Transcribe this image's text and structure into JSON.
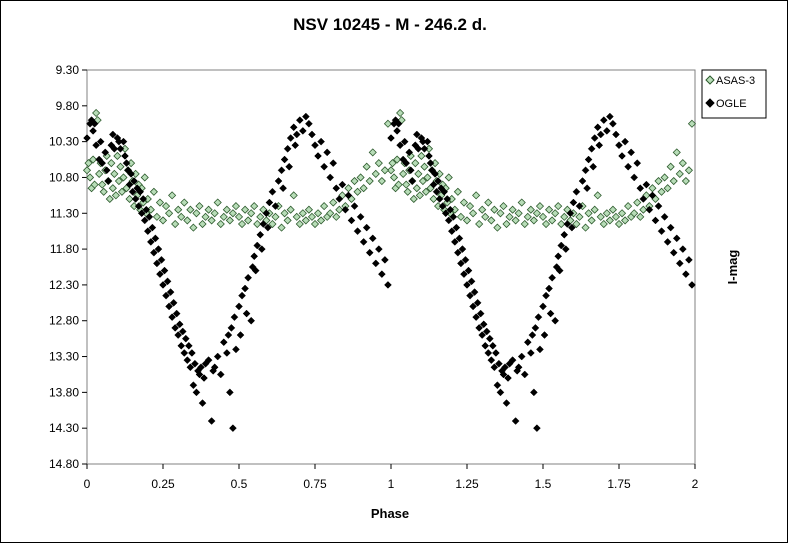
{
  "chart_data": {
    "type": "scatter",
    "title": "NSV 10245 - M - 246.2 d.",
    "xlabel": "Phase",
    "ylabel": "I-mag",
    "xlim": [
      0,
      2
    ],
    "ylim": [
      14.8,
      9.3
    ],
    "y_inverted": true,
    "x_ticks": [
      "0",
      "0.25",
      "0.5",
      "0.75",
      "1",
      "1.25",
      "1.5",
      "1.75",
      "2"
    ],
    "y_ticks": [
      "9.30",
      "9.80",
      "10.30",
      "10.80",
      "11.30",
      "11.80",
      "12.30",
      "12.80",
      "13.30",
      "13.80",
      "14.30",
      "14.80"
    ],
    "grid": false,
    "legend_position": "top-right",
    "series": [
      {
        "name": "ASAS-3",
        "marker": "diamond-open",
        "color": "#b7dcb7",
        "points": [
          [
            0.0,
            10.7
          ],
          [
            0.005,
            10.6
          ],
          [
            0.01,
            10.8
          ],
          [
            0.015,
            10.95
          ],
          [
            0.02,
            10.55
          ],
          [
            0.025,
            10.9
          ],
          [
            0.03,
            9.9
          ],
          [
            0.035,
            10.0
          ],
          [
            0.04,
            10.75
          ],
          [
            0.045,
            10.6
          ],
          [
            0.05,
            10.9
          ],
          [
            0.055,
            11.0
          ],
          [
            0.06,
            10.7
          ],
          [
            0.065,
            10.5
          ],
          [
            0.07,
            10.85
          ],
          [
            0.075,
            11.1
          ],
          [
            0.08,
            10.6
          ],
          [
            0.085,
            10.95
          ],
          [
            0.09,
            10.75
          ],
          [
            0.095,
            11.05
          ],
          [
            0.1,
            10.5
          ],
          [
            0.105,
            10.85
          ],
          [
            0.11,
            10.65
          ],
          [
            0.115,
            11.0
          ],
          [
            0.12,
            10.8
          ],
          [
            0.125,
            10.4
          ],
          [
            0.13,
            10.95
          ],
          [
            0.135,
            10.7
          ],
          [
            0.14,
            11.1
          ],
          [
            0.145,
            10.6
          ],
          [
            0.15,
            10.85
          ],
          [
            0.155,
            11.2
          ],
          [
            0.16,
            10.75
          ],
          [
            0.165,
            11.05
          ],
          [
            0.17,
            10.9
          ],
          [
            0.175,
            11.25
          ],
          [
            0.18,
            10.95
          ],
          [
            0.185,
            11.15
          ],
          [
            0.19,
            10.8
          ],
          [
            0.195,
            11.3
          ],
          [
            0.2,
            11.1
          ],
          [
            0.21,
            11.25
          ],
          [
            0.22,
            11.0
          ],
          [
            0.23,
            11.35
          ],
          [
            0.24,
            11.15
          ],
          [
            0.25,
            11.4
          ],
          [
            0.26,
            11.2
          ],
          [
            0.27,
            11.3
          ],
          [
            0.28,
            11.05
          ],
          [
            0.29,
            11.45
          ],
          [
            0.3,
            11.25
          ],
          [
            0.31,
            11.35
          ],
          [
            0.32,
            11.15
          ],
          [
            0.33,
            11.4
          ],
          [
            0.34,
            11.25
          ],
          [
            0.35,
            11.5
          ],
          [
            0.36,
            11.3
          ],
          [
            0.37,
            11.2
          ],
          [
            0.38,
            11.45
          ],
          [
            0.39,
            11.35
          ],
          [
            0.4,
            11.25
          ],
          [
            0.41,
            11.4
          ],
          [
            0.42,
            11.3
          ],
          [
            0.43,
            11.15
          ],
          [
            0.44,
            11.45
          ],
          [
            0.45,
            11.35
          ],
          [
            0.46,
            11.25
          ],
          [
            0.47,
            11.4
          ],
          [
            0.48,
            11.3
          ],
          [
            0.49,
            11.2
          ],
          [
            0.5,
            11.35
          ],
          [
            0.51,
            11.45
          ],
          [
            0.52,
            11.25
          ],
          [
            0.53,
            11.4
          ],
          [
            0.54,
            11.3
          ],
          [
            0.55,
            11.2
          ],
          [
            0.56,
            11.45
          ],
          [
            0.57,
            11.35
          ],
          [
            0.58,
            11.25
          ],
          [
            0.59,
            11.4
          ],
          [
            0.6,
            11.3
          ],
          [
            0.61,
            11.45
          ],
          [
            0.62,
            11.35
          ],
          [
            0.63,
            11.2
          ],
          [
            0.64,
            11.5
          ],
          [
            0.65,
            11.3
          ],
          [
            0.66,
            11.4
          ],
          [
            0.67,
            11.25
          ],
          [
            0.68,
            11.05
          ],
          [
            0.69,
            11.35
          ],
          [
            0.7,
            11.45
          ],
          [
            0.71,
            11.3
          ],
          [
            0.72,
            11.4
          ],
          [
            0.73,
            11.25
          ],
          [
            0.74,
            11.35
          ],
          [
            0.75,
            11.45
          ],
          [
            0.76,
            11.3
          ],
          [
            0.77,
            11.4
          ],
          [
            0.78,
            11.2
          ],
          [
            0.79,
            11.35
          ],
          [
            0.8,
            11.3
          ],
          [
            0.81,
            11.15
          ],
          [
            0.82,
            11.35
          ],
          [
            0.83,
            11.25
          ],
          [
            0.84,
            11.05
          ],
          [
            0.85,
            11.2
          ],
          [
            0.86,
            10.95
          ],
          [
            0.87,
            11.1
          ],
          [
            0.88,
            10.85
          ],
          [
            0.89,
            11.0
          ],
          [
            0.9,
            10.8
          ],
          [
            0.91,
            10.95
          ],
          [
            0.92,
            10.65
          ],
          [
            0.93,
            10.85
          ],
          [
            0.94,
            10.45
          ],
          [
            0.95,
            10.75
          ],
          [
            0.96,
            10.6
          ],
          [
            0.97,
            10.85
          ],
          [
            0.98,
            10.7
          ],
          [
            0.99,
            10.05
          ]
        ]
      },
      {
        "name": "OGLE",
        "marker": "diamond-filled",
        "color": "#000000",
        "points": [
          [
            0.0,
            10.25
          ],
          [
            0.01,
            10.05
          ],
          [
            0.015,
            10.0
          ],
          [
            0.02,
            10.15
          ],
          [
            0.025,
            10.05
          ],
          [
            0.03,
            10.35
          ],
          [
            0.04,
            10.55
          ],
          [
            0.045,
            10.3
          ],
          [
            0.05,
            10.6
          ],
          [
            0.06,
            10.45
          ],
          [
            0.065,
            10.7
          ],
          [
            0.07,
            10.85
          ],
          [
            0.08,
            10.35
          ],
          [
            0.085,
            10.2
          ],
          [
            0.09,
            10.4
          ],
          [
            0.1,
            10.25
          ],
          [
            0.105,
            10.3
          ],
          [
            0.11,
            10.4
          ],
          [
            0.12,
            10.3
          ],
          [
            0.125,
            10.5
          ],
          [
            0.13,
            10.6
          ],
          [
            0.135,
            10.7
          ],
          [
            0.14,
            10.9
          ],
          [
            0.145,
            10.75
          ],
          [
            0.15,
            11.0
          ],
          [
            0.155,
            10.85
          ],
          [
            0.16,
            11.1
          ],
          [
            0.165,
            10.95
          ],
          [
            0.17,
            11.2
          ],
          [
            0.175,
            11.0
          ],
          [
            0.18,
            11.3
          ],
          [
            0.185,
            11.1
          ],
          [
            0.19,
            11.4
          ],
          [
            0.195,
            11.25
          ],
          [
            0.2,
            11.55
          ],
          [
            0.205,
            11.35
          ],
          [
            0.21,
            11.7
          ],
          [
            0.215,
            11.5
          ],
          [
            0.22,
            11.85
          ],
          [
            0.225,
            11.65
          ],
          [
            0.23,
            12.0
          ],
          [
            0.235,
            11.8
          ],
          [
            0.24,
            12.15
          ],
          [
            0.245,
            11.95
          ],
          [
            0.25,
            12.3
          ],
          [
            0.255,
            12.1
          ],
          [
            0.26,
            12.45
          ],
          [
            0.265,
            12.25
          ],
          [
            0.27,
            12.6
          ],
          [
            0.275,
            12.4
          ],
          [
            0.28,
            12.75
          ],
          [
            0.285,
            12.55
          ],
          [
            0.29,
            12.9
          ],
          [
            0.295,
            12.7
          ],
          [
            0.3,
            13.0
          ],
          [
            0.305,
            12.85
          ],
          [
            0.31,
            13.15
          ],
          [
            0.315,
            12.95
          ],
          [
            0.32,
            13.25
          ],
          [
            0.325,
            13.05
          ],
          [
            0.33,
            13.35
          ],
          [
            0.335,
            13.15
          ],
          [
            0.34,
            13.45
          ],
          [
            0.345,
            13.25
          ],
          [
            0.35,
            13.7
          ],
          [
            0.355,
            13.4
          ],
          [
            0.36,
            13.8
          ],
          [
            0.365,
            13.5
          ],
          [
            0.37,
            13.55
          ],
          [
            0.375,
            13.45
          ],
          [
            0.38,
            13.95
          ],
          [
            0.385,
            13.6
          ],
          [
            0.39,
            13.4
          ],
          [
            0.4,
            13.35
          ],
          [
            0.41,
            14.2
          ],
          [
            0.415,
            13.5
          ],
          [
            0.42,
            13.45
          ],
          [
            0.43,
            13.3
          ],
          [
            0.44,
            13.55
          ],
          [
            0.45,
            13.1
          ],
          [
            0.46,
            13.25
          ],
          [
            0.465,
            13.0
          ],
          [
            0.47,
            13.8
          ],
          [
            0.475,
            12.9
          ],
          [
            0.48,
            14.3
          ],
          [
            0.485,
            12.75
          ],
          [
            0.49,
            13.2
          ],
          [
            0.5,
            12.6
          ],
          [
            0.505,
            13.0
          ],
          [
            0.51,
            12.45
          ],
          [
            0.52,
            12.35
          ],
          [
            0.525,
            12.7
          ],
          [
            0.53,
            12.2
          ],
          [
            0.54,
            12.8
          ],
          [
            0.545,
            12.05
          ],
          [
            0.55,
            11.9
          ],
          [
            0.555,
            12.1
          ],
          [
            0.56,
            11.75
          ],
          [
            0.57,
            11.6
          ],
          [
            0.575,
            11.8
          ],
          [
            0.58,
            11.45
          ],
          [
            0.59,
            11.3
          ],
          [
            0.595,
            11.5
          ],
          [
            0.6,
            11.15
          ],
          [
            0.61,
            11.0
          ],
          [
            0.62,
            11.2
          ],
          [
            0.63,
            10.85
          ],
          [
            0.64,
            10.7
          ],
          [
            0.645,
            10.95
          ],
          [
            0.65,
            10.55
          ],
          [
            0.66,
            10.4
          ],
          [
            0.665,
            10.65
          ],
          [
            0.67,
            10.25
          ],
          [
            0.68,
            10.1
          ],
          [
            0.685,
            10.35
          ],
          [
            0.69,
            10.2
          ],
          [
            0.7,
            10.0
          ],
          [
            0.71,
            10.15
          ],
          [
            0.72,
            9.95
          ],
          [
            0.73,
            10.05
          ],
          [
            0.74,
            10.2
          ],
          [
            0.75,
            10.35
          ],
          [
            0.76,
            10.5
          ],
          [
            0.77,
            10.3
          ],
          [
            0.78,
            10.65
          ],
          [
            0.79,
            10.45
          ],
          [
            0.8,
            10.8
          ],
          [
            0.81,
            10.6
          ],
          [
            0.82,
            10.95
          ],
          [
            0.83,
            11.1
          ],
          [
            0.84,
            10.9
          ],
          [
            0.85,
            11.25
          ],
          [
            0.86,
            11.05
          ],
          [
            0.87,
            11.4
          ],
          [
            0.88,
            11.2
          ],
          [
            0.89,
            11.55
          ],
          [
            0.9,
            11.35
          ],
          [
            0.91,
            11.7
          ],
          [
            0.92,
            11.5
          ],
          [
            0.93,
            11.85
          ],
          [
            0.94,
            11.65
          ],
          [
            0.95,
            12.0
          ],
          [
            0.96,
            11.8
          ],
          [
            0.97,
            12.15
          ],
          [
            0.98,
            11.95
          ],
          [
            0.99,
            12.3
          ]
        ]
      }
    ]
  }
}
